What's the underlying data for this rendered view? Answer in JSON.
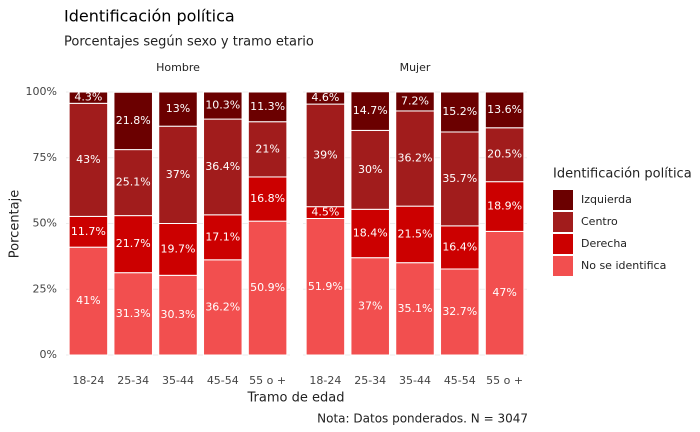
{
  "chart_data": {
    "type": "bar",
    "stacked": true,
    "title": "Identificación política",
    "subtitle": "Porcentajes según sexo y tramo etario",
    "x_label": "Tramo de edad",
    "y_label": "Porcentaje",
    "caption": "Nota: Datos ponderados. N = 3047",
    "legend_title": "Identificación política",
    "facets": [
      "Hombre",
      "Mujer"
    ],
    "categories": [
      "18-24",
      "25-34",
      "35-44",
      "45-54",
      "55 o +"
    ],
    "ylim": [
      0,
      100
    ],
    "yticks": [
      {
        "value": 0,
        "label": "0%"
      },
      {
        "value": 25,
        "label": "25%"
      },
      {
        "value": 50,
        "label": "50%"
      },
      {
        "value": 75,
        "label": "75%"
      },
      {
        "value": 100,
        "label": "100%"
      }
    ],
    "grid": true,
    "series": [
      {
        "name": "Izquierda",
        "color": "#6b0000",
        "values": [
          [
            4.3,
            21.8,
            13,
            10.3,
            11.3
          ],
          [
            4.6,
            14.7,
            7.2,
            15.2,
            13.6
          ]
        ],
        "value_labels": [
          [
            "4.3%",
            "21.8%",
            "13%",
            "10.3%",
            "11.3%"
          ],
          [
            "4.6%",
            "14.7%",
            "7.2%",
            "15.2%",
            "13.6%"
          ]
        ]
      },
      {
        "name": "Centro",
        "color": "#a11c1c",
        "values": [
          [
            43,
            25.1,
            37,
            36.4,
            21
          ],
          [
            39,
            30,
            36.2,
            35.7,
            20.5
          ]
        ],
        "value_labels": [
          [
            "43%",
            "25.1%",
            "37%",
            "36.4%",
            "21%"
          ],
          [
            "39%",
            "30%",
            "36.2%",
            "35.7%",
            "20.5%"
          ]
        ]
      },
      {
        "name": "Derecha",
        "color": "#cc0000",
        "values": [
          [
            11.7,
            21.7,
            19.7,
            17.1,
            16.8
          ],
          [
            4.5,
            18.4,
            21.5,
            16.4,
            18.9
          ]
        ],
        "value_labels": [
          [
            "11.7%",
            "21.7%",
            "19.7%",
            "17.1%",
            "16.8%"
          ],
          [
            "4.5%",
            "18.4%",
            "21.5%",
            "16.4%",
            "18.9%"
          ]
        ]
      },
      {
        "name": "No se identifica",
        "color": "#f24f4f",
        "values": [
          [
            41,
            31.3,
            30.3,
            36.2,
            50.9
          ],
          [
            51.9,
            37,
            35.1,
            32.7,
            47
          ]
        ],
        "value_labels": [
          [
            "41%",
            "31.3%",
            "30.3%",
            "36.2%",
            "50.9%"
          ],
          [
            "51.9%",
            "37%",
            "35.1%",
            "32.7%",
            "47%"
          ]
        ]
      }
    ]
  }
}
